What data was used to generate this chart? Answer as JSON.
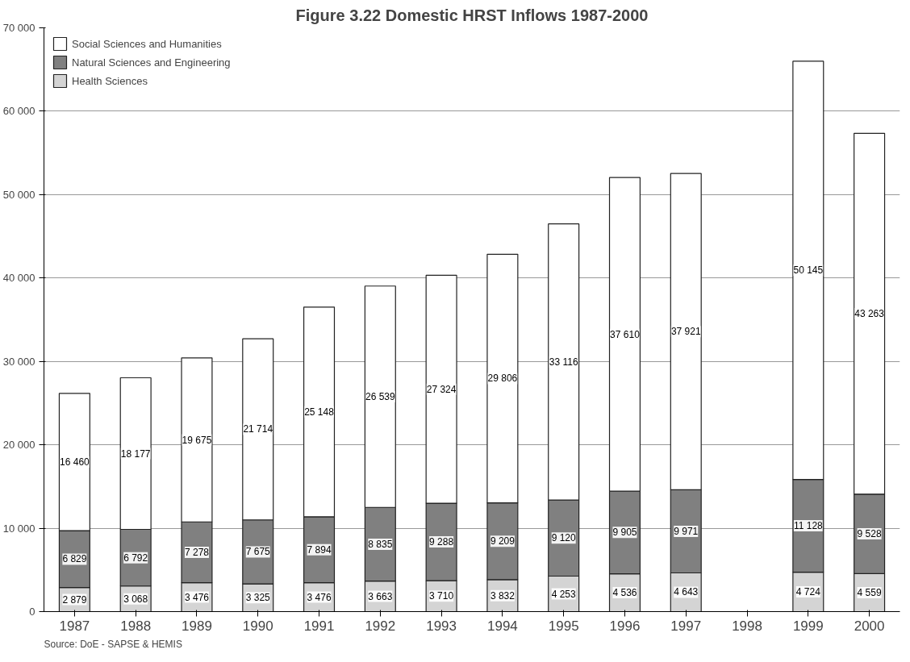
{
  "chart_data": {
    "type": "bar",
    "stacked": true,
    "title": "Figure 3.22 Domestic HRST Inflows 1987-2000",
    "categories": [
      "1987",
      "1988",
      "1989",
      "1990",
      "1991",
      "1992",
      "1993",
      "1994",
      "1995",
      "1996",
      "1997",
      "1998",
      "1999",
      "2000"
    ],
    "series": [
      {
        "name": "Health Sciences",
        "color": "#d4d4d4",
        "values": [
          2879,
          3068,
          3476,
          3325,
          3476,
          3663,
          3710,
          3832,
          4253,
          4536,
          4643,
          null,
          4724,
          4559
        ],
        "value_labels": [
          "2 879",
          "3 068",
          "3 476",
          "3 325",
          "3 476",
          "3 663",
          "3 710",
          "3 832",
          "4 253",
          "4 536",
          "4 643",
          null,
          "4 724",
          "4 559"
        ]
      },
      {
        "name": "Natural Sciences and Engineering",
        "color": "#808080",
        "values": [
          6829,
          6792,
          7278,
          7675,
          7894,
          8835,
          9288,
          9209,
          9120,
          9905,
          9971,
          null,
          11128,
          9528
        ],
        "value_labels": [
          "6 829",
          "6 792",
          "7 278",
          "7 675",
          "7 894",
          "8 835",
          "9 288",
          "9 209",
          "9 120",
          "9 905",
          "9 971",
          null,
          "11 128",
          "9 528"
        ]
      },
      {
        "name": "Social Sciences and Humanities",
        "color": "#ffffff",
        "values": [
          16460,
          18177,
          19675,
          21714,
          25148,
          26539,
          27324,
          29806,
          33116,
          37610,
          37921,
          null,
          50145,
          43263
        ],
        "value_labels": [
          "16 460",
          "18 177",
          "19 675",
          "21 714",
          "25 148",
          "26 539",
          "27 324",
          "29 806",
          "33 116",
          "37 610",
          "37 921",
          null,
          "50 145",
          "43 263"
        ]
      }
    ],
    "ylim": [
      0,
      70000
    ],
    "yticks": [
      {
        "value": 0,
        "label": "0"
      },
      {
        "value": 10000,
        "label": "10 000"
      },
      {
        "value": 20000,
        "label": "20 000"
      },
      {
        "value": 30000,
        "label": "30 000"
      },
      {
        "value": 40000,
        "label": "40 000"
      },
      {
        "value": 50000,
        "label": "50 000"
      },
      {
        "value": 60000,
        "label": "60 000"
      },
      {
        "value": 70000,
        "label": "70 000"
      }
    ],
    "grid": "y",
    "legend": "top left",
    "annotations": [
      "Source: DoE - SAPSE & HEMIS"
    ]
  }
}
